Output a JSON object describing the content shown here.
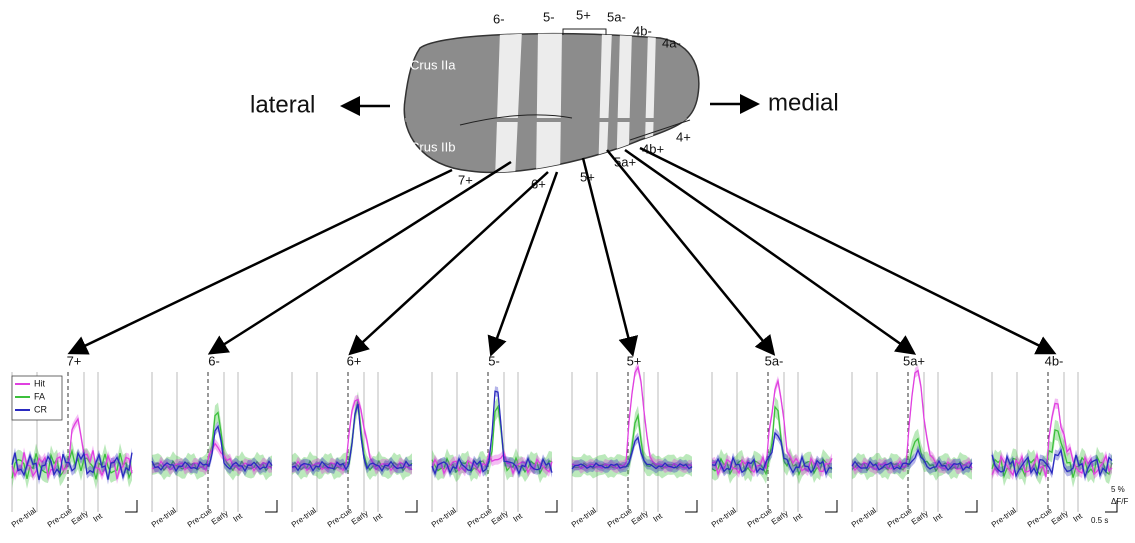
{
  "brain": {
    "lateral": "lateral",
    "medial": "medial",
    "crus_iia": "Crus IIa",
    "crus_iib": "Crus IIb",
    "top_zones": [
      "6-",
      "5-",
      "5+",
      "5a-",
      "4b-",
      "4a-"
    ],
    "bottom_zones": [
      "7+",
      "6+",
      "5+",
      "5a+",
      "4b+",
      "4+"
    ]
  },
  "panels": [
    "7+",
    "6-",
    "6+",
    "5-",
    "5+",
    "5a-",
    "5a+",
    "4b-"
  ],
  "epochs": [
    "Pre-trial",
    "Pre-cue",
    "Early",
    "Int"
  ],
  "legend": [
    {
      "name": "Hit",
      "color": "#e040e0"
    },
    {
      "name": "FA",
      "color": "#3cc03c"
    },
    {
      "name": "CR",
      "color": "#2a2ac0"
    }
  ],
  "scale": {
    "y": "5 %",
    "unit": "ΔF/F",
    "x": "0.5 s"
  }
}
